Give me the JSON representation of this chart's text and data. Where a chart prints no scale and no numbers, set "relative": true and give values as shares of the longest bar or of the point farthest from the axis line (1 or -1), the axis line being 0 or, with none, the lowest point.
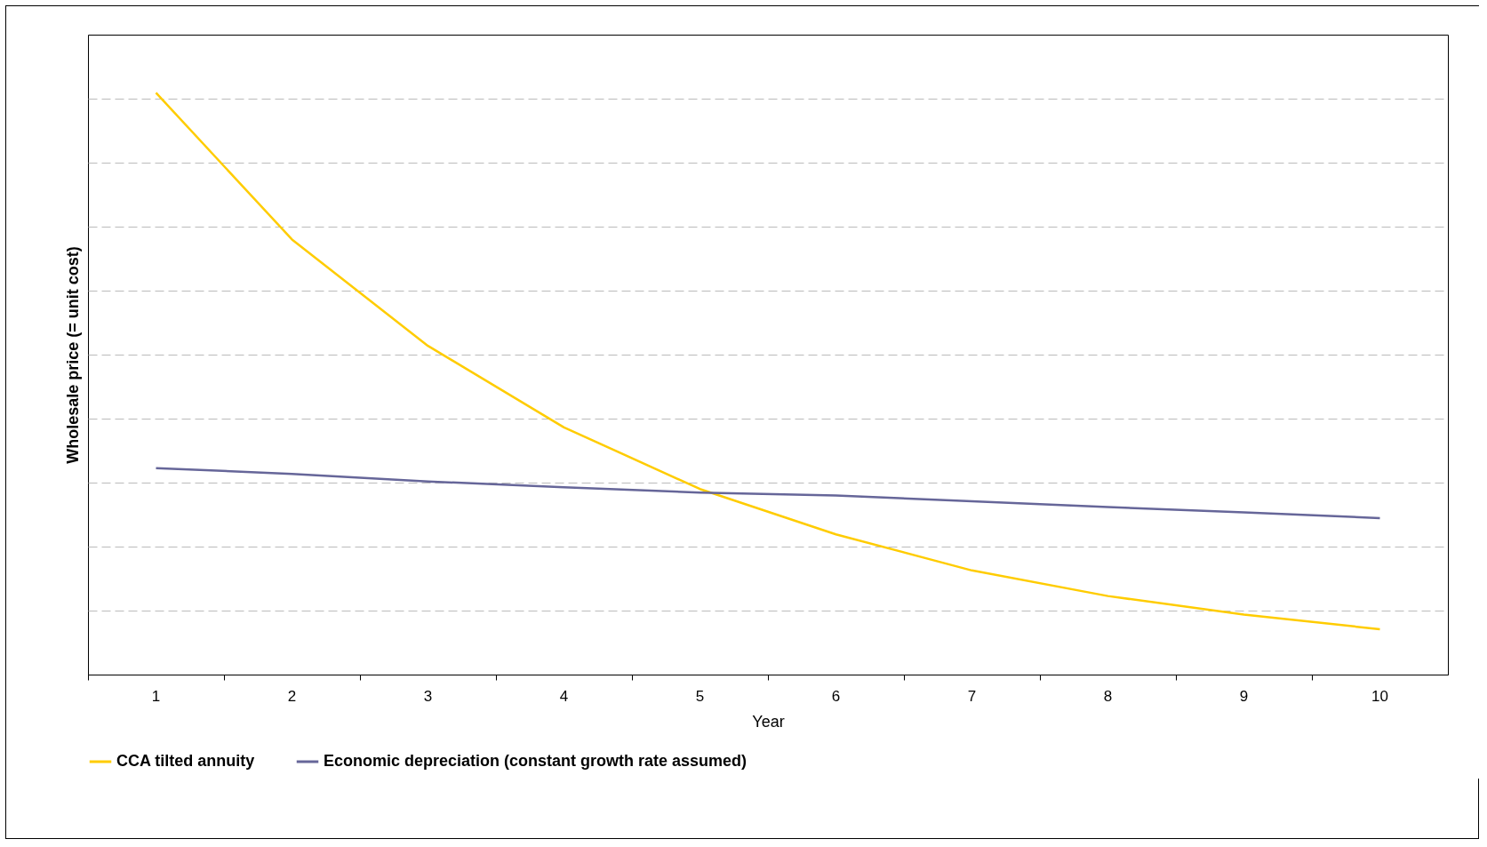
{
  "chart_data": {
    "type": "line",
    "relative": true,
    "xlabel": "Year",
    "ylabel": "Wholesale price (= unit cost)",
    "categories": [
      "1",
      "2",
      "3",
      "4",
      "5",
      "6",
      "7",
      "8",
      "9",
      "10"
    ],
    "series": [
      {
        "name": "CCA tilted annuity",
        "color": "#ffcc00",
        "values": [
          1,
          0.748,
          0.565,
          0.425,
          0.319,
          0.241,
          0.179,
          0.135,
          0.103,
          0.078
        ]
      },
      {
        "name": "Economic depreciation (constant growth rate assumed)",
        "color": "#666699",
        "values": [
          0.355,
          0.345,
          0.332,
          0.322,
          0.313,
          0.308,
          0.298,
          0.288,
          0.279,
          0.269
        ]
      }
    ],
    "grid": "y",
    "legend": "bottom left",
    "marker": "none",
    "line_style": "solid"
  }
}
